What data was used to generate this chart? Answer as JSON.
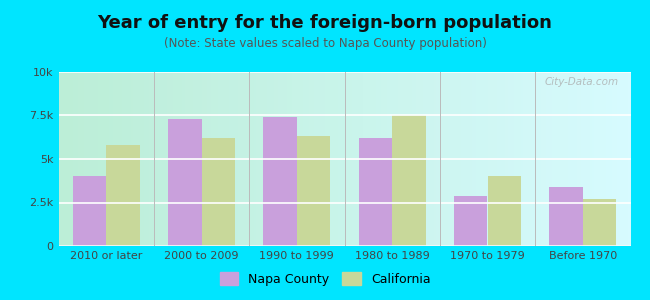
{
  "title": "Year of entry for the foreign-born population",
  "subtitle": "(Note: State values scaled to Napa County population)",
  "categories": [
    "2010 or later",
    "2000 to 2009",
    "1990 to 1999",
    "1980 to 1989",
    "1970 to 1979",
    "Before 1970"
  ],
  "napa_values": [
    4000,
    7300,
    7400,
    6200,
    2900,
    3400
  ],
  "california_values": [
    5800,
    6200,
    6300,
    7500,
    4000,
    2700
  ],
  "napa_color": "#c9a0dc",
  "california_color": "#c8d89a",
  "background_outer": "#00e5ff",
  "background_chart_top": "#ffffff",
  "background_chart_bottom": "#dff0d0",
  "ylim": [
    0,
    10000
  ],
  "yticks": [
    0,
    2500,
    5000,
    7500,
    10000
  ],
  "ytick_labels": [
    "0",
    "2.5k",
    "5k",
    "7.5k",
    "10k"
  ],
  "legend_napa": "Napa County",
  "legend_california": "California",
  "bar_width": 0.35,
  "title_fontsize": 13,
  "subtitle_fontsize": 8.5
}
